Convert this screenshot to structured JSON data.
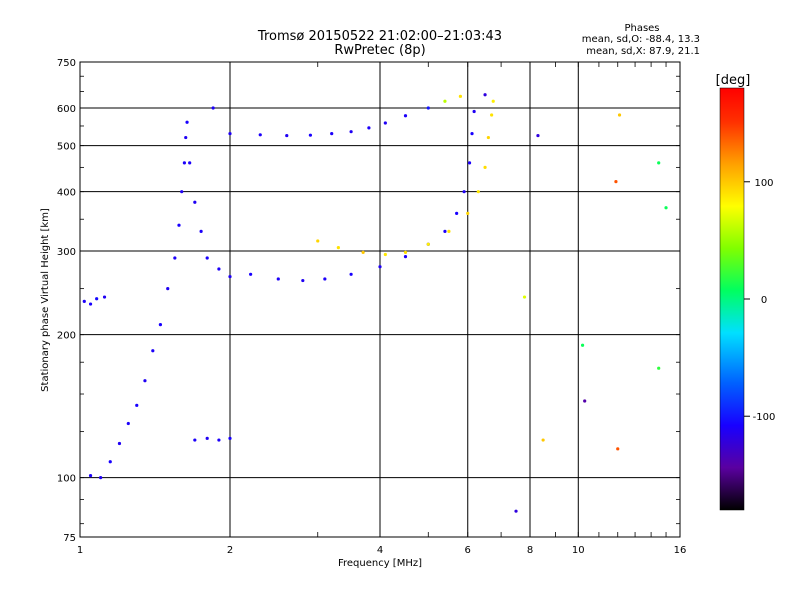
{
  "chart_data": {
    "type": "scatter",
    "title": "Tromsø 20150522 21:02:00–21:03:43",
    "subtitle": "RwPretec (8p)",
    "xlabel": "Frequency [MHz]",
    "ylabel": "Stationary phase Virtual Height [km]",
    "x_scale": "log",
    "y_scale": "log",
    "xlim": [
      1,
      16
    ],
    "ylim": [
      75,
      750
    ],
    "x_ticks": [
      {
        "value": 1,
        "label": "1"
      },
      {
        "value": 2,
        "label": "2"
      },
      {
        "value": 4,
        "label": "4"
      },
      {
        "value": 6,
        "label": "6"
      },
      {
        "value": 8,
        "label": "8"
      },
      {
        "value": 10,
        "label": "10"
      },
      {
        "value": 16,
        "label": "16"
      }
    ],
    "y_ticks": [
      {
        "value": 75,
        "label": "75"
      },
      {
        "value": 100,
        "label": "100"
      },
      {
        "value": 200,
        "label": "200"
      },
      {
        "value": 300,
        "label": "300"
      },
      {
        "value": 400,
        "label": "400"
      },
      {
        "value": 500,
        "label": "500"
      },
      {
        "value": 600,
        "label": "600"
      },
      {
        "value": 750,
        "label": "750"
      }
    ],
    "grid": true,
    "stats": {
      "heading": "Phases",
      "line1": "mean, sd,O: -88.4, 13.3",
      "line2": "mean, sd,X:  87.9, 21.1"
    },
    "colorbar": {
      "label": "[deg]",
      "range": [
        -180,
        180
      ],
      "ticks": [
        {
          "value": 100,
          "label": "100"
        },
        {
          "value": 0,
          "label": "0"
        },
        {
          "value": -100,
          "label": "-100"
        }
      ]
    },
    "series": [
      {
        "values": [
          {
            "x": 1.02,
            "y": 235,
            "p": -110
          },
          {
            "x": 1.05,
            "y": 232,
            "p": -108
          },
          {
            "x": 1.08,
            "y": 238,
            "p": -105
          },
          {
            "x": 1.12,
            "y": 240,
            "p": -112
          },
          {
            "x": 1.05,
            "y": 101,
            "p": -110
          },
          {
            "x": 1.1,
            "y": 100,
            "p": -112
          },
          {
            "x": 1.15,
            "y": 108,
            "p": -108
          },
          {
            "x": 1.2,
            "y": 118,
            "p": -112
          },
          {
            "x": 1.25,
            "y": 130,
            "p": -110
          },
          {
            "x": 1.3,
            "y": 142,
            "p": -108
          },
          {
            "x": 1.35,
            "y": 160,
            "p": -112
          },
          {
            "x": 1.4,
            "y": 185,
            "p": -110
          },
          {
            "x": 1.45,
            "y": 210,
            "p": -108
          },
          {
            "x": 1.5,
            "y": 250,
            "p": -112
          },
          {
            "x": 1.55,
            "y": 290,
            "p": -110
          },
          {
            "x": 1.58,
            "y": 340,
            "p": -108
          },
          {
            "x": 1.6,
            "y": 400,
            "p": -112
          },
          {
            "x": 1.62,
            "y": 460,
            "p": -110
          },
          {
            "x": 1.63,
            "y": 520,
            "p": -112
          },
          {
            "x": 1.64,
            "y": 560,
            "p": -108
          },
          {
            "x": 1.66,
            "y": 460,
            "p": -110
          },
          {
            "x": 1.7,
            "y": 380,
            "p": -112
          },
          {
            "x": 1.75,
            "y": 330,
            "p": -110
          },
          {
            "x": 1.8,
            "y": 290,
            "p": -108
          },
          {
            "x": 1.9,
            "y": 275,
            "p": -110
          },
          {
            "x": 2.0,
            "y": 265,
            "p": -112
          },
          {
            "x": 1.7,
            "y": 120,
            "p": -110
          },
          {
            "x": 1.8,
            "y": 121,
            "p": -112
          },
          {
            "x": 1.9,
            "y": 120,
            "p": -110
          },
          {
            "x": 2.0,
            "y": 121,
            "p": -108
          },
          {
            "x": 1.85,
            "y": 600,
            "p": -110
          },
          {
            "x": 2.0,
            "y": 530,
            "p": -112
          },
          {
            "x": 2.3,
            "y": 527,
            "p": -110
          },
          {
            "x": 2.6,
            "y": 525,
            "p": -112
          },
          {
            "x": 2.9,
            "y": 526,
            "p": -108
          },
          {
            "x": 3.2,
            "y": 530,
            "p": -110
          },
          {
            "x": 3.5,
            "y": 535,
            "p": -112
          },
          {
            "x": 3.8,
            "y": 545,
            "p": -110
          },
          {
            "x": 4.1,
            "y": 558,
            "p": -112
          },
          {
            "x": 4.5,
            "y": 578,
            "p": -110
          },
          {
            "x": 5.0,
            "y": 600,
            "p": -100
          },
          {
            "x": 5.4,
            "y": 620,
            "p": 60
          },
          {
            "x": 5.8,
            "y": 635,
            "p": 90
          },
          {
            "x": 6.5,
            "y": 640,
            "p": -120
          },
          {
            "x": 2.2,
            "y": 268,
            "p": -108
          },
          {
            "x": 2.5,
            "y": 262,
            "p": -110
          },
          {
            "x": 2.8,
            "y": 260,
            "p": -112
          },
          {
            "x": 3.1,
            "y": 262,
            "p": -110
          },
          {
            "x": 3.5,
            "y": 268,
            "p": -108
          },
          {
            "x": 4.0,
            "y": 278,
            "p": -112
          },
          {
            "x": 4.5,
            "y": 292,
            "p": -110
          },
          {
            "x": 5.0,
            "y": 310,
            "p": -112
          },
          {
            "x": 5.4,
            "y": 330,
            "p": -110
          },
          {
            "x": 5.7,
            "y": 360,
            "p": -108
          },
          {
            "x": 5.9,
            "y": 400,
            "p": -112
          },
          {
            "x": 6.05,
            "y": 460,
            "p": -110
          },
          {
            "x": 6.12,
            "y": 530,
            "p": -108
          },
          {
            "x": 6.18,
            "y": 590,
            "p": -112
          },
          {
            "x": 3.0,
            "y": 315,
            "p": 95
          },
          {
            "x": 3.3,
            "y": 305,
            "p": 90
          },
          {
            "x": 3.7,
            "y": 298,
            "p": 100
          },
          {
            "x": 4.1,
            "y": 295,
            "p": 88
          },
          {
            "x": 4.5,
            "y": 298,
            "p": 92
          },
          {
            "x": 5.0,
            "y": 310,
            "p": 85
          },
          {
            "x": 5.5,
            "y": 330,
            "p": 90
          },
          {
            "x": 6.0,
            "y": 360,
            "p": 95
          },
          {
            "x": 6.3,
            "y": 400,
            "p": 88
          },
          {
            "x": 6.5,
            "y": 450,
            "p": 92
          },
          {
            "x": 6.6,
            "y": 520,
            "p": 95
          },
          {
            "x": 6.7,
            "y": 580,
            "p": 90
          },
          {
            "x": 6.75,
            "y": 620,
            "p": 85
          },
          {
            "x": 7.5,
            "y": 85,
            "p": -120
          },
          {
            "x": 8.5,
            "y": 120,
            "p": 100
          },
          {
            "x": 10.3,
            "y": 145,
            "p": -140
          },
          {
            "x": 10.2,
            "y": 190,
            "p": 10
          },
          {
            "x": 12.0,
            "y": 115,
            "p": 140
          },
          {
            "x": 12.1,
            "y": 580,
            "p": 100
          },
          {
            "x": 11.9,
            "y": 420,
            "p": 140
          },
          {
            "x": 14.5,
            "y": 460,
            "p": 10
          },
          {
            "x": 14.5,
            "y": 170,
            "p": 20
          },
          {
            "x": 15.0,
            "y": 370,
            "p": 10
          },
          {
            "x": 7.8,
            "y": 240,
            "p": 70
          },
          {
            "x": 8.3,
            "y": 525,
            "p": -120
          }
        ]
      }
    ]
  }
}
